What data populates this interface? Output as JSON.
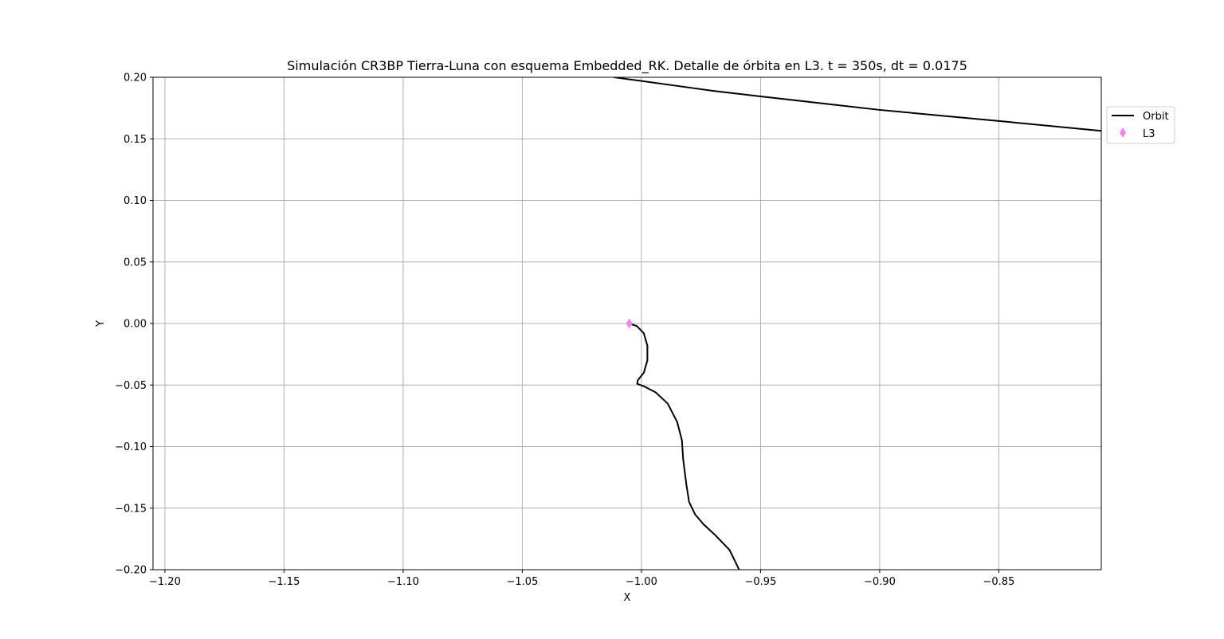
{
  "chart_data": {
    "type": "line",
    "title": "Simulación CR3BP Tierra-Luna con esquema Embedded_RK. Detalle de órbita en L3. t = 350s, dt = 0.0175",
    "xlabel": "X",
    "ylabel": "Y",
    "xlim": [
      -1.205,
      -0.807
    ],
    "ylim": [
      -0.2,
      0.2
    ],
    "xticks": [
      -1.2,
      -1.15,
      -1.1,
      -1.05,
      -1.0,
      -0.95,
      -0.9,
      -0.85
    ],
    "xtick_labels": [
      "−1.20",
      "−1.15",
      "−1.10",
      "−1.05",
      "−1.00",
      "−0.95",
      "−0.90",
      "−0.85"
    ],
    "yticks": [
      0.2,
      0.15,
      0.1,
      0.05,
      0.0,
      -0.05,
      -0.1,
      -0.15,
      -0.2
    ],
    "ytick_labels": [
      "0.20",
      "0.15",
      "0.10",
      "0.05",
      "0.00",
      "−0.05",
      "−0.10",
      "−0.15",
      "−0.20"
    ],
    "grid": true,
    "legend_position": "outside-top-right",
    "series": [
      {
        "name": "Orbit",
        "kind": "line",
        "color": "#000000",
        "segments": [
          [
            [
              -1.0053,
              0.0
            ],
            [
              -1.002,
              -0.002
            ],
            [
              -0.999,
              -0.008
            ],
            [
              -0.9975,
              -0.018
            ],
            [
              -0.9975,
              -0.03
            ],
            [
              -0.999,
              -0.04
            ],
            [
              -1.0015,
              -0.046
            ],
            [
              -1.0018,
              -0.049
            ],
            [
              -0.999,
              -0.051
            ],
            [
              -0.994,
              -0.056
            ],
            [
              -0.989,
              -0.065
            ],
            [
              -0.985,
              -0.08
            ],
            [
              -0.983,
              -0.095
            ],
            [
              -0.9825,
              -0.11
            ],
            [
              -0.9812,
              -0.13
            ],
            [
              -0.98,
              -0.145
            ],
            [
              -0.9775,
              -0.155
            ],
            [
              -0.974,
              -0.163
            ],
            [
              -0.969,
              -0.172
            ],
            [
              -0.963,
              -0.184
            ],
            [
              -0.959,
              -0.2
            ]
          ],
          [
            [
              -1.0115,
              0.2
            ],
            [
              -1.0,
              0.197
            ],
            [
              -0.985,
              0.193
            ],
            [
              -0.97,
              0.189
            ],
            [
              -0.95,
              0.1845
            ],
            [
              -0.9,
              0.1735
            ],
            [
              -0.85,
              0.1645
            ],
            [
              -0.807,
              0.1565
            ]
          ]
        ]
      },
      {
        "name": "L3",
        "kind": "marker",
        "marker": "diamond",
        "color": "#ee82ee",
        "points": [
          [
            -1.0051,
            0.0
          ]
        ]
      }
    ]
  }
}
